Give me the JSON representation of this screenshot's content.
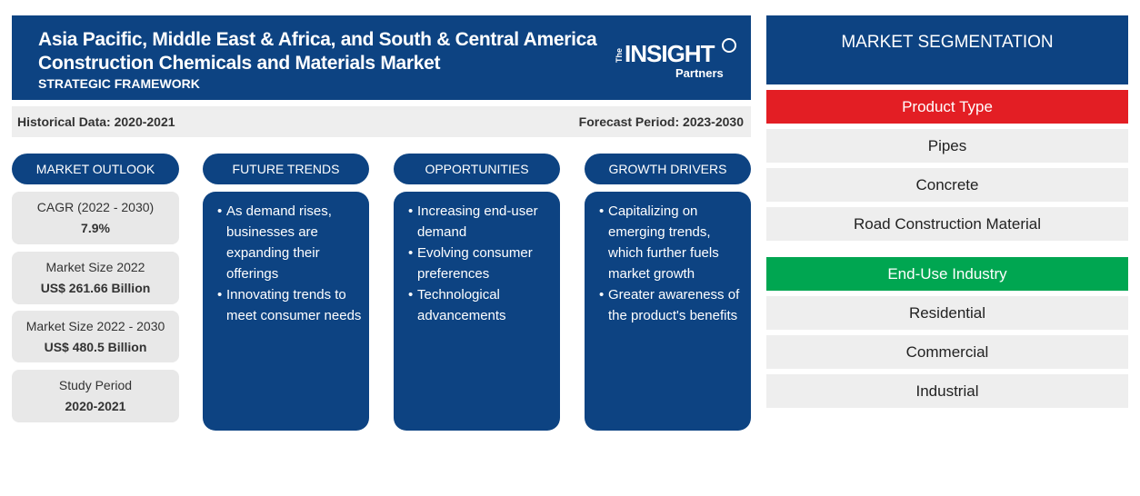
{
  "header": {
    "title_line1": "Asia Pacific, Middle East & Africa, and South & Central America",
    "title_line2": "Construction Chemicals and Materials Market",
    "subtitle": "STRATEGIC FRAMEWORK"
  },
  "logo": {
    "the": "The",
    "insight": "INSIGHT",
    "partners": "Partners"
  },
  "periods": {
    "historical": "Historical Data: 2020-2021",
    "forecast": "Forecast Period: 2023-2030"
  },
  "columns": {
    "outlook": "MARKET OUTLOOK",
    "trends": "FUTURE TRENDS",
    "opportunities": "OPPORTUNITIES",
    "drivers": "GROWTH DRIVERS"
  },
  "outlook": [
    {
      "label": "CAGR (2022 - 2030)",
      "value": "7.9%"
    },
    {
      "label": "Market Size 2022",
      "value": "US$ 261.66 Billion"
    },
    {
      "label": "Market Size 2022 - 2030",
      "value": "US$ 480.5 Billion"
    },
    {
      "label": "Study Period",
      "value": "2020-2021"
    }
  ],
  "trends": [
    "As demand rises, businesses are expanding their offerings",
    "Innovating trends to meet consumer needs"
  ],
  "opportunities": [
    "Increasing end-user demand",
    "Evolving consumer preferences",
    "Technological advancements"
  ],
  "drivers": [
    "Capitalizing on emerging trends, which further fuels market growth",
    "Greater awareness of the product's benefits"
  ],
  "segmentation": {
    "title": "MARKET SEGMENTATION",
    "product_type": {
      "label": "Product Type",
      "items": [
        "Pipes",
        "Concrete",
        "Road Construction Material"
      ]
    },
    "end_use": {
      "label": "End-Use Industry",
      "items": [
        "Residential",
        "Commercial",
        "Industrial"
      ]
    }
  },
  "colors": {
    "navy": "#0d4382",
    "red": "#e31e24",
    "green": "#00a651",
    "light_gray": "#eeeeee"
  }
}
